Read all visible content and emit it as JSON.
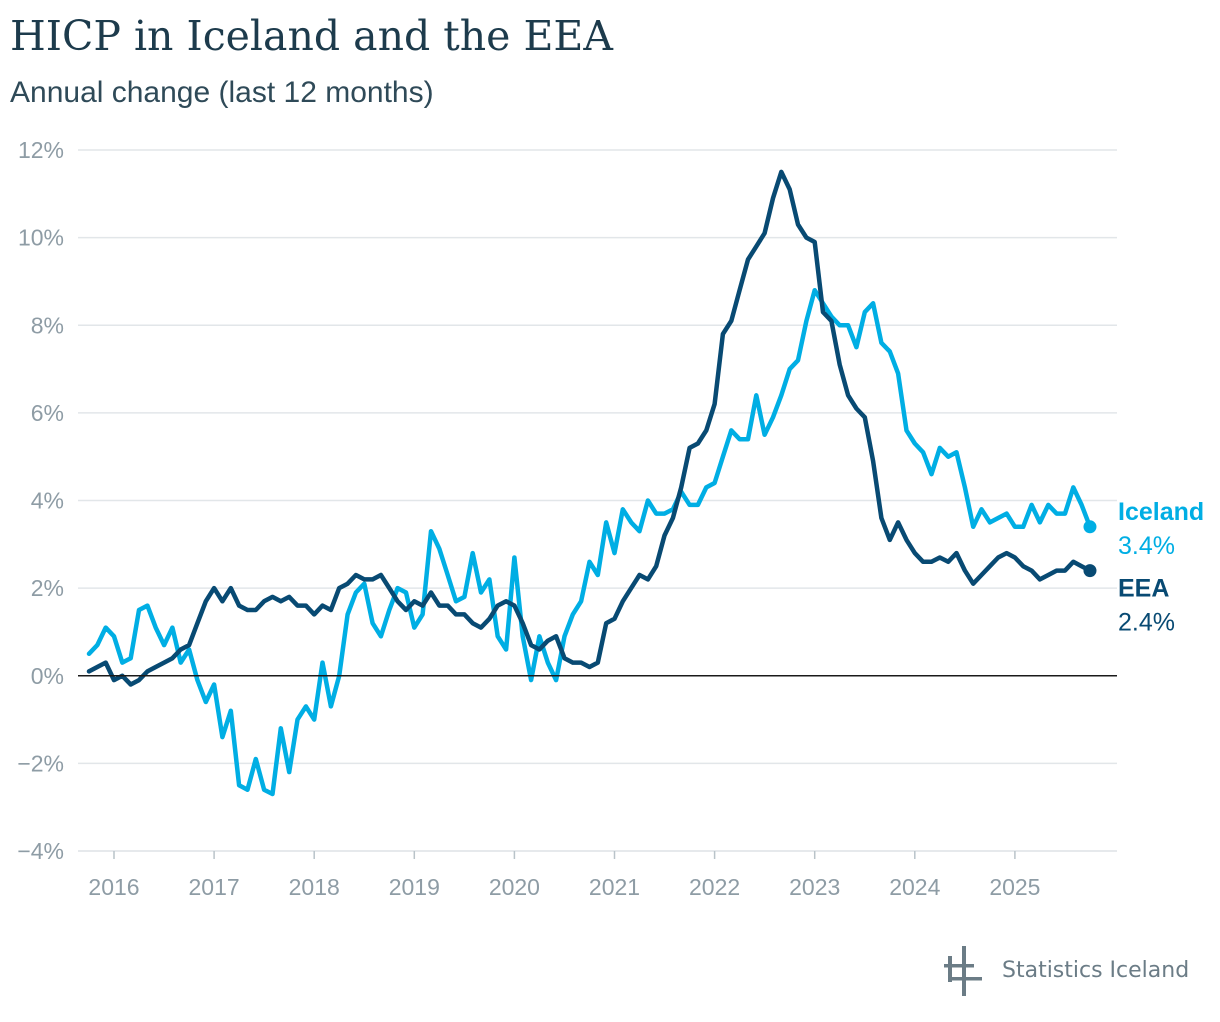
{
  "title": "HICP in Iceland and the EEA",
  "subtitle": "Annual change (last 12 months)",
  "brand": "Statistics Iceland",
  "colors": {
    "iceland": "#00aee4",
    "eea": "#084a73",
    "grid": "#e2e6e9",
    "zero": "#1a1a1a",
    "axis_text": "#8e9ca5"
  },
  "chart_data": {
    "type": "line",
    "title": "HICP in Iceland and the EEA",
    "subtitle": "Annual change (last 12 months)",
    "xlabel": "",
    "ylabel": "",
    "ylim": [
      -4,
      12
    ],
    "y_ticks": [
      -4,
      -2,
      0,
      2,
      4,
      6,
      8,
      10,
      12
    ],
    "y_tick_labels": [
      "−4%",
      "−2%",
      "0%",
      "2%",
      "4%",
      "6%",
      "8%",
      "10%",
      "12%"
    ],
    "x_tick_labels": [
      "2016",
      "2017",
      "2018",
      "2019",
      "2020",
      "2021",
      "2022",
      "2023",
      "2024",
      "2025"
    ],
    "x_start": "2015-10",
    "x_end": "2025-11",
    "grid": true,
    "legend": "end-labels-right",
    "series": [
      {
        "name": "Iceland",
        "end_value_label": "3.4%",
        "values": [
          0.5,
          0.7,
          1.1,
          0.9,
          0.3,
          0.4,
          1.5,
          1.6,
          1.1,
          0.7,
          1.1,
          0.3,
          0.6,
          -0.1,
          -0.6,
          -0.2,
          -1.4,
          -0.8,
          -2.5,
          -2.6,
          -1.9,
          -2.6,
          -2.7,
          -1.2,
          -2.2,
          -1.0,
          -0.7,
          -1.0,
          0.3,
          -0.7,
          0.0,
          1.4,
          1.9,
          2.1,
          1.2,
          0.9,
          1.5,
          2.0,
          1.9,
          1.1,
          1.4,
          3.3,
          2.9,
          2.3,
          1.7,
          1.8,
          2.8,
          1.9,
          2.2,
          0.9,
          0.6,
          2.7,
          0.9,
          -0.1,
          0.9,
          0.3,
          -0.1,
          0.9,
          1.4,
          1.7,
          2.6,
          2.3,
          3.5,
          2.8,
          3.8,
          3.5,
          3.3,
          4.0,
          3.7,
          3.7,
          3.8,
          4.2,
          3.9,
          3.9,
          4.3,
          4.4,
          5.0,
          5.6,
          5.4,
          5.4,
          6.4,
          5.5,
          5.9,
          6.4,
          7.0,
          7.2,
          8.1,
          8.8,
          8.5,
          8.2,
          8.0,
          8.0,
          7.5,
          8.3,
          8.5,
          7.6,
          7.4,
          6.9,
          5.6,
          5.3,
          5.1,
          4.6,
          5.2,
          5.0,
          5.1,
          4.3,
          3.4,
          3.8,
          3.5,
          3.6,
          3.7,
          3.4,
          3.4,
          3.9,
          3.5,
          3.9,
          3.7,
          3.7,
          4.3,
          3.9,
          3.4
        ]
      },
      {
        "name": "EEA",
        "end_value_label": "2.4%",
        "values": [
          0.1,
          0.2,
          0.3,
          -0.1,
          0.0,
          -0.2,
          -0.1,
          0.1,
          0.2,
          0.3,
          0.4,
          0.6,
          0.7,
          1.2,
          1.7,
          2.0,
          1.7,
          2.0,
          1.6,
          1.5,
          1.5,
          1.7,
          1.8,
          1.7,
          1.8,
          1.6,
          1.6,
          1.4,
          1.6,
          1.5,
          2.0,
          2.1,
          2.3,
          2.2,
          2.2,
          2.3,
          2.0,
          1.7,
          1.5,
          1.7,
          1.6,
          1.9,
          1.6,
          1.6,
          1.4,
          1.4,
          1.2,
          1.1,
          1.3,
          1.6,
          1.7,
          1.6,
          1.2,
          0.7,
          0.6,
          0.8,
          0.9,
          0.4,
          0.3,
          0.3,
          0.2,
          0.3,
          1.2,
          1.3,
          1.7,
          2.0,
          2.3,
          2.2,
          2.5,
          3.2,
          3.6,
          4.3,
          5.2,
          5.3,
          5.6,
          6.2,
          7.8,
          8.1,
          8.8,
          9.5,
          9.8,
          10.1,
          10.9,
          11.5,
          11.1,
          10.3,
          10.0,
          9.9,
          8.3,
          8.1,
          7.1,
          6.4,
          6.1,
          5.9,
          4.9,
          3.6,
          3.1,
          3.5,
          3.1,
          2.8,
          2.6,
          2.6,
          2.7,
          2.6,
          2.8,
          2.4,
          2.1,
          2.3,
          2.5,
          2.7,
          2.8,
          2.7,
          2.5,
          2.4,
          2.2,
          2.3,
          2.4,
          2.4,
          2.6,
          2.5,
          2.4
        ]
      }
    ]
  }
}
